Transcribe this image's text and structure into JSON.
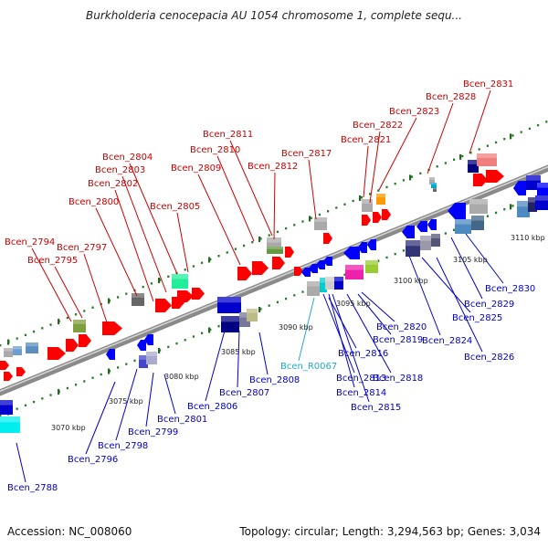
{
  "title": "Burkholderia cenocepacia AU 1054 chromosome 1, complete sequ...",
  "footer": {
    "accession": "Accession: NC_008060",
    "topology": "Topology: circular; Length: 3,294,563 bp; Genes: 3,034"
  },
  "colors": {
    "forward_label": "#cc0000",
    "reverse_label": "#0000cc",
    "rna_label": "#22aacc",
    "backbone": "#888888",
    "tick": "#2a7a2a"
  },
  "scale_labels": [
    "3070 kbp",
    "3075 kbp",
    "3080 kbp",
    "3085 kbp",
    "3090 kbp",
    "3095 kbp",
    "3100 kbp",
    "3105 kbp",
    "3110 kbp"
  ],
  "forward_labels": [
    "Bcen_2794",
    "Bcen_2795",
    "Bcen_2797",
    "Bcen_2800",
    "Bcen_2802",
    "Bcen_2803",
    "Bcen_2804",
    "Bcen_2805",
    "Bcen_2809",
    "Bcen_2810",
    "Bcen_2811",
    "Bcen_2812",
    "Bcen_2817",
    "Bcen_2821",
    "Bcen_2822",
    "Bcen_2823",
    "Bcen_2828",
    "Bcen_2831"
  ],
  "reverse_labels": [
    "Bcen_2788",
    "Bcen_2796",
    "Bcen_2798",
    "Bcen_2799",
    "Bcen_2801",
    "Bcen_2806",
    "Bcen_2807",
    "Bcen_2808",
    "Bcen_R0067",
    "Bcen_2813",
    "Bcen_2814",
    "Bcen_2815",
    "Bcen_2816",
    "Bcen_2818",
    "Bcen_2819",
    "Bcen_2820",
    "Bcen_2824",
    "Bcen_2825",
    "Bcen_2826",
    "Bcen_2829",
    "Bcen_2830"
  ]
}
